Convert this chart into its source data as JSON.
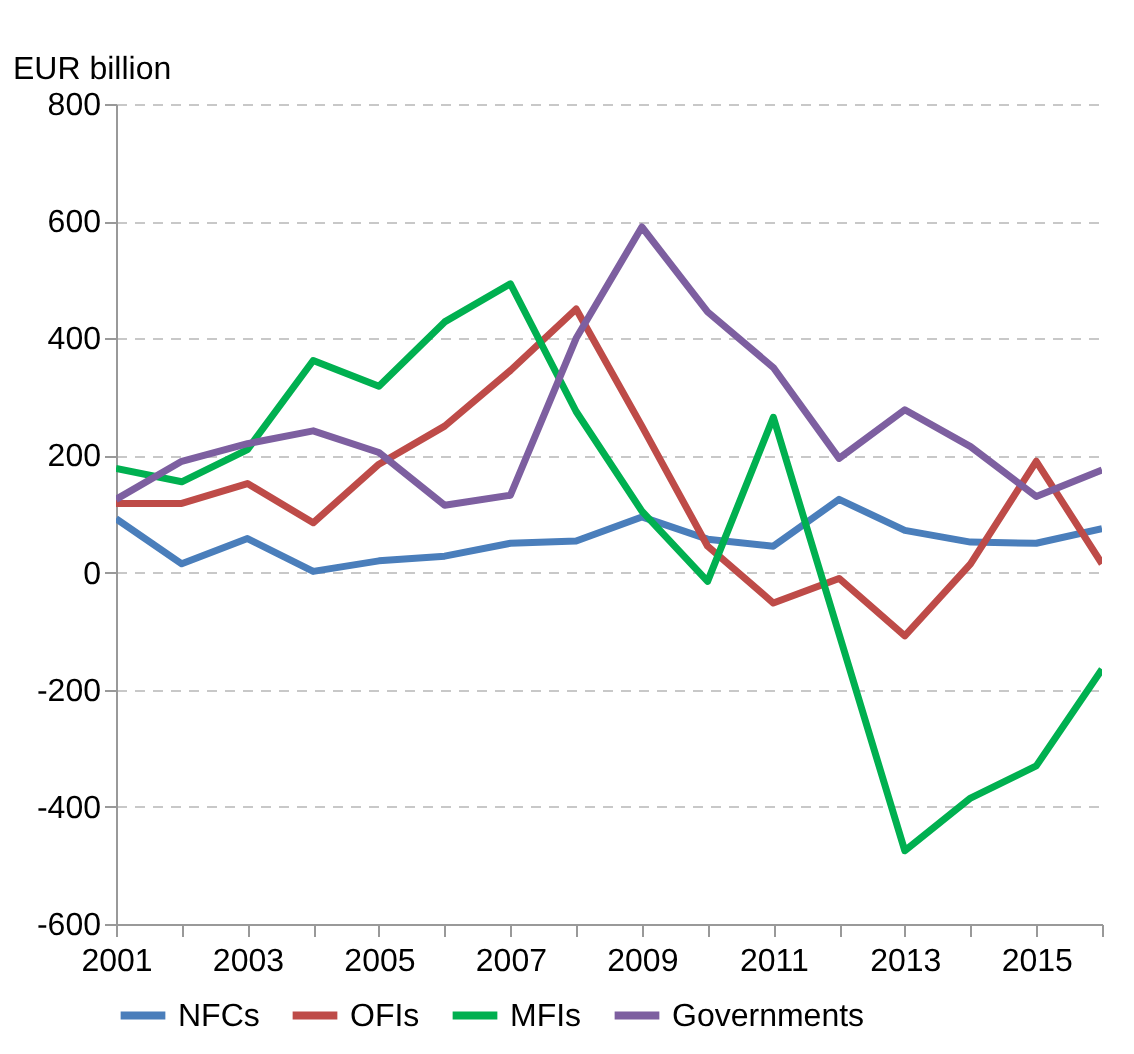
{
  "chart_data": {
    "type": "line",
    "ylabel": "EUR billion",
    "x": [
      2001,
      2002,
      2003,
      2004,
      2005,
      2006,
      2007,
      2008,
      2009,
      2010,
      2011,
      2012,
      2013,
      2014,
      2015,
      2016
    ],
    "series": [
      {
        "name": "NFCs",
        "color": "#4a7ebb",
        "values": [
          92,
          15,
          58,
          2,
          20,
          28,
          50,
          54,
          95,
          57,
          45,
          125,
          72,
          52,
          50,
          75
        ]
      },
      {
        "name": "OFIs",
        "color": "#be4b48",
        "values": [
          118,
          118,
          152,
          85,
          185,
          250,
          345,
          450,
          250,
          45,
          -52,
          -10,
          -108,
          15,
          190,
          15
        ]
      },
      {
        "name": "MFIs",
        "color": "#00b050",
        "values": [
          178,
          155,
          210,
          362,
          318,
          428,
          493,
          275,
          105,
          -15,
          265,
          -105,
          -475,
          -385,
          -330,
          -165
        ]
      },
      {
        "name": "Governments",
        "color": "#7d5fa0",
        "values": [
          125,
          190,
          220,
          242,
          205,
          115,
          132,
          400,
          590,
          445,
          350,
          195,
          278,
          215,
          130,
          175
        ]
      }
    ],
    "xlim": [
      2001,
      2016
    ],
    "xticks": [
      2001,
      {
        "value": 2002,
        "label": null
      },
      2003,
      {
        "value": 2004,
        "label": null
      },
      2005,
      {
        "value": 2006,
        "label": null
      },
      2007,
      {
        "value": 2008,
        "label": null
      },
      2009,
      {
        "value": 2010,
        "label": null
      },
      2011,
      {
        "value": 2012,
        "label": null
      },
      2013,
      {
        "value": 2014,
        "label": null
      },
      2015,
      {
        "value": 2016,
        "label": null
      }
    ],
    "ylim": [
      -600,
      800
    ],
    "yticks": [
      -600,
      -400,
      -200,
      0,
      200,
      400,
      600,
      800
    ],
    "grid": "y",
    "legend": "bottom",
    "marker": "none",
    "line_style": "solid"
  }
}
